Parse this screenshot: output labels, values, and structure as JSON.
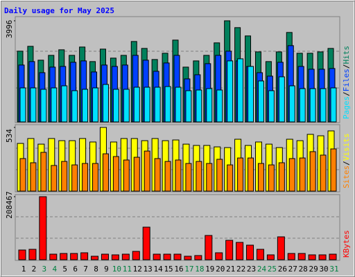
{
  "chart_data": [
    {
      "type": "bar",
      "title": "Daily usage for May 2025",
      "legend_separator": "/",
      "ylim": [
        0,
        3996
      ],
      "yticks": [
        3996
      ],
      "series": [
        {
          "name": "Hits",
          "color": "#00805c",
          "values": [
            2795,
            2987,
            2439,
            2630,
            2850,
            2630,
            2959,
            2384,
            2877,
            2521,
            2630,
            3178,
            2904,
            2466,
            2713,
            3233,
            2165,
            2411,
            2630,
            3124,
            3996,
            3726,
            3398,
            2767,
            2384,
            2767,
            3535,
            2713,
            2713,
            2767,
            2904
          ]
        },
        {
          "name": "Files",
          "color": "#0040ff",
          "values": [
            2247,
            2384,
            1945,
            2165,
            2192,
            2356,
            2411,
            1973,
            2247,
            2192,
            2247,
            2630,
            2439,
            2000,
            2329,
            2630,
            1699,
            1863,
            2302,
            2630,
            2795,
            2411,
            2192,
            1945,
            1808,
            2356,
            3014,
            2192,
            2082,
            2082,
            2110
          ]
        },
        {
          "name": "Pages",
          "color": "#00e0ff",
          "values": [
            1343,
            1343,
            1288,
            1343,
            1425,
            1233,
            1288,
            1343,
            1480,
            1288,
            1288,
            1370,
            1370,
            1370,
            1397,
            1370,
            1233,
            1260,
            1315,
            1260,
            2411,
            2493,
            2192,
            1617,
            1233,
            1781,
            1425,
            1315,
            1315,
            1315,
            1343
          ]
        }
      ]
    },
    {
      "type": "bar",
      "legend_separator": "/",
      "ylim": [
        0,
        534
      ],
      "yticks": [
        534
      ],
      "series": [
        {
          "name": "Visits",
          "color": "#ffff00",
          "values": [
            400,
            441,
            394,
            441,
            423,
            423,
            441,
            412,
            534,
            412,
            441,
            441,
            423,
            441,
            423,
            429,
            394,
            383,
            383,
            371,
            365,
            435,
            383,
            412,
            394,
            365,
            435,
            423,
            476,
            464,
            505
          ]
        },
        {
          "name": "Sites",
          "color": "#ff8000",
          "values": [
            273,
            238,
            325,
            215,
            249,
            220,
            232,
            232,
            313,
            290,
            261,
            284,
            336,
            273,
            249,
            261,
            232,
            249,
            232,
            267,
            220,
            278,
            278,
            232,
            220,
            238,
            273,
            278,
            331,
            302,
            354
          ]
        }
      ]
    },
    {
      "type": "bar",
      "ylim": [
        0,
        208467
      ],
      "yticks": [
        208467
      ],
      "categories": [
        "1",
        "2",
        "3",
        "4",
        "5",
        "6",
        "7",
        "8",
        "9",
        "10",
        "11",
        "12",
        "13",
        "14",
        "15",
        "16",
        "17",
        "18",
        "19",
        "20",
        "21",
        "22",
        "23",
        "24",
        "25",
        "26",
        "27",
        "28",
        "29",
        "30",
        "31"
      ],
      "category_colors": [
        "#000000",
        "#000000",
        "#008040",
        "#008040",
        "#000000",
        "#000000",
        "#000000",
        "#000000",
        "#000000",
        "#008040",
        "#008040",
        "#000000",
        "#000000",
        "#000000",
        "#000000",
        "#000000",
        "#008040",
        "#008040",
        "#000000",
        "#000000",
        "#000000",
        "#000000",
        "#000000",
        "#008040",
        "#008040",
        "#000000",
        "#000000",
        "#000000",
        "#000000",
        "#000000",
        "#008040"
      ],
      "series": [
        {
          "name": "KBytes",
          "color": "#ff0000",
          "values": [
            32074,
            34365,
            208467,
            18328,
            20619,
            20619,
            22910,
            11455,
            18328,
            16037,
            18328,
            27492,
            107677,
            18328,
            18328,
            18328,
            11455,
            13746,
            80185,
            22910,
            64148,
            57275,
            48111,
            34365,
            16037,
            75603,
            20619,
            20619,
            16037,
            16037,
            18328
          ]
        }
      ]
    }
  ]
}
